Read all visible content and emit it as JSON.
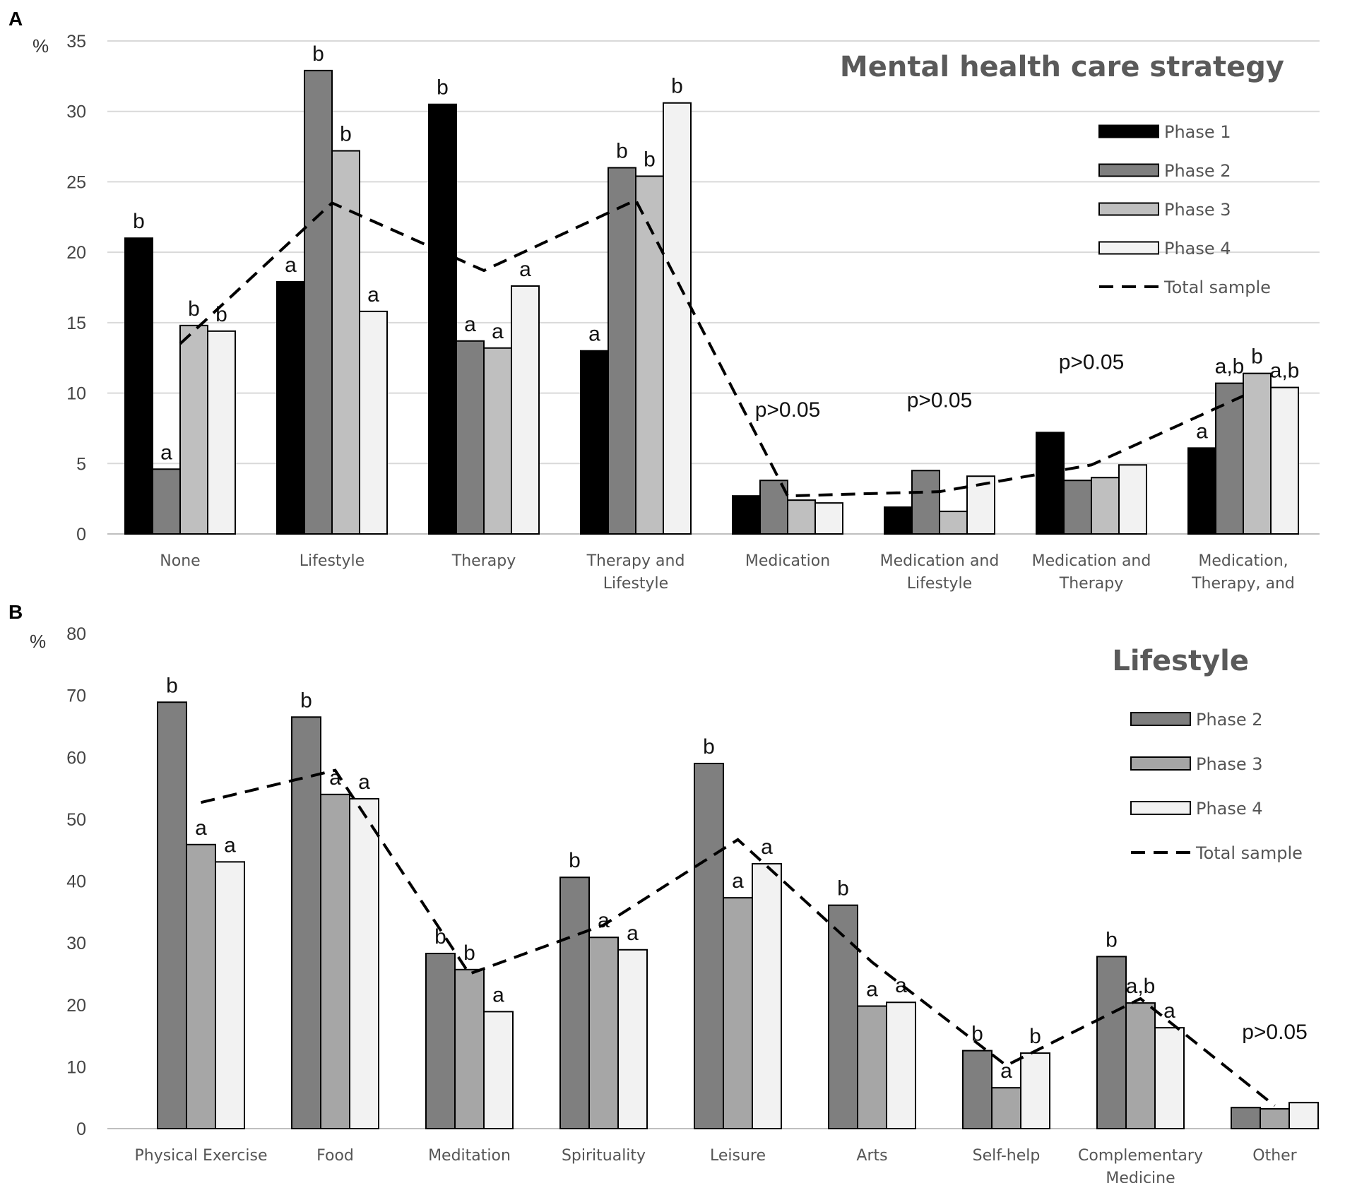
{
  "chart_data": [
    {
      "panel_label": "A",
      "type": "bar",
      "title": "Mental health care strategy",
      "ylabel": "%",
      "ylim": [
        0,
        35
      ],
      "yticks": [
        0,
        5,
        10,
        15,
        20,
        25,
        30,
        35
      ],
      "grid": true,
      "legend_position": "top-right",
      "categories": [
        [
          "None"
        ],
        [
          "Lifestyle"
        ],
        [
          "Therapy"
        ],
        [
          "Therapy and",
          "Lifestyle"
        ],
        [
          "Medication"
        ],
        [
          "Medication and",
          "Lifestyle"
        ],
        [
          "Medication and",
          "Therapy"
        ],
        [
          "Medication,",
          "Therapy, and"
        ]
      ],
      "series": [
        {
          "name": "Phase 1",
          "color": "#000000",
          "values": [
            21.0,
            17.9,
            30.5,
            13.0,
            2.7,
            1.9,
            7.2,
            6.1
          ]
        },
        {
          "name": "Phase 2",
          "color": "#7f7f7f",
          "values": [
            4.6,
            32.9,
            13.7,
            26.0,
            3.8,
            4.5,
            3.8,
            10.7
          ]
        },
        {
          "name": "Phase 3",
          "color": "#bfbfbf",
          "values": [
            14.8,
            27.2,
            13.2,
            25.4,
            2.4,
            1.6,
            4.0,
            11.4
          ]
        },
        {
          "name": "Phase 4",
          "color": "#f2f2f2",
          "values": [
            14.4,
            15.8,
            17.6,
            30.6,
            2.2,
            4.1,
            4.9,
            10.4
          ]
        }
      ],
      "total_sample": {
        "name": "Total sample",
        "values": [
          13.5,
          23.5,
          18.7,
          23.7,
          2.7,
          3.0,
          4.9,
          9.8
        ]
      },
      "significance_labels": [
        [
          "b",
          "a",
          "b",
          "b"
        ],
        [
          "a",
          "b",
          "b",
          "a"
        ],
        [
          "b",
          "a",
          "a",
          "a"
        ],
        [
          "a",
          "b",
          "b",
          "b"
        ],
        [
          "p>0.05"
        ],
        [
          "p>0.05"
        ],
        [
          "p>0.05"
        ],
        [
          "a",
          "a,b",
          "b",
          "a,b"
        ]
      ]
    },
    {
      "panel_label": "B",
      "type": "bar",
      "title": "Lifestyle",
      "ylabel": "%",
      "ylim": [
        0,
        80
      ],
      "yticks": [
        0,
        10,
        20,
        30,
        40,
        50,
        60,
        70,
        80
      ],
      "grid": false,
      "legend_position": "top-right",
      "categories": [
        [
          "Physical Exercise"
        ],
        [
          "Food"
        ],
        [
          "Meditation"
        ],
        [
          "Spirituality"
        ],
        [
          "Leisure"
        ],
        [
          "Arts"
        ],
        [
          "Self-help"
        ],
        [
          "Complementary",
          "Medicine"
        ],
        [
          "Other"
        ]
      ],
      "series": [
        {
          "name": "Phase 2",
          "color": "#7f7f7f",
          "values": [
            68.9,
            66.5,
            28.3,
            40.6,
            59.0,
            36.1,
            12.6,
            27.8,
            3.4
          ]
        },
        {
          "name": "Phase 3",
          "color": "#a6a6a6",
          "values": [
            45.9,
            54.0,
            25.7,
            30.9,
            37.3,
            19.8,
            6.6,
            20.3,
            3.2
          ]
        },
        {
          "name": "Phase 4",
          "color": "#f2f2f2",
          "values": [
            43.1,
            53.3,
            18.9,
            28.9,
            42.8,
            20.4,
            12.2,
            16.3,
            4.2
          ]
        }
      ],
      "total_sample": {
        "name": "Total sample",
        "values": [
          52.7,
          57.9,
          25.0,
          32.9,
          46.7,
          26.9,
          10.2,
          21.0,
          3.7
        ]
      },
      "significance_labels": [
        [
          "b",
          "a",
          "a"
        ],
        [
          "b",
          "a",
          "a"
        ],
        [
          "b",
          "b",
          "a"
        ],
        [
          "b",
          "a",
          "a"
        ],
        [
          "b",
          "a",
          "a"
        ],
        [
          "b",
          "a",
          "a"
        ],
        [
          "b",
          "a",
          "b"
        ],
        [
          "b",
          "a,b",
          "a"
        ],
        [
          "p>0.05"
        ]
      ]
    }
  ]
}
